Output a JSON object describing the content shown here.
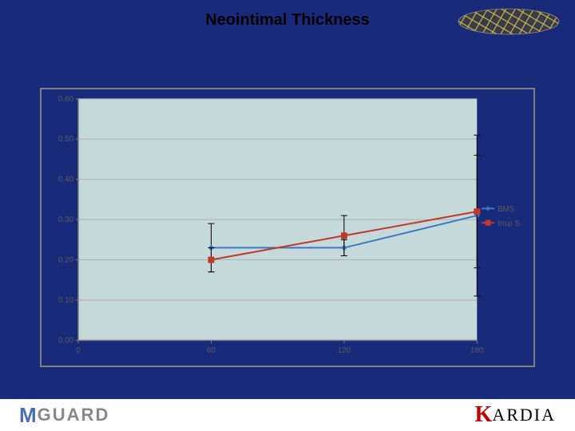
{
  "slide": {
    "background_color": "#1a2a7a",
    "title": "Neointimal Thickness",
    "title_color": "#000000",
    "title_fontsize": 20
  },
  "stent_image": {
    "mesh_color": "#d6c64a",
    "body_color": "#3a3a4a"
  },
  "chart": {
    "type": "line",
    "plot_background": "#c5d8da",
    "panel_border": "#7f7f7f",
    "gridline_color": "#b0b0b0",
    "axis_line_color": "#808080",
    "tick_label_color": "#595959",
    "tick_fontsize": 10,
    "xlim": [
      0,
      180
    ],
    "xticks": [
      0,
      60,
      120,
      180
    ],
    "xtick_labels": [
      "0",
      "60",
      "120",
      "180"
    ],
    "ylim": [
      0.0,
      0.6
    ],
    "yticks": [
      0.0,
      0.1,
      0.2,
      0.3,
      0.4,
      0.5,
      0.6
    ],
    "ytick_labels": [
      "0.00",
      "0.10",
      "0.20",
      "0.30",
      "0.40",
      "0.50",
      "0.60"
    ],
    "series": [
      {
        "name": "BMS",
        "label": "BMS",
        "color": "#3b78c4",
        "marker": "diamond",
        "marker_size": 6,
        "line_width": 2,
        "x": [
          60,
          120,
          180
        ],
        "y": [
          0.23,
          0.23,
          0.31
        ],
        "err": [
          0.06,
          0.02,
          0.2
        ]
      },
      {
        "name": "Insp S",
        "label": "Insp S",
        "color": "#c0392b",
        "marker": "square",
        "marker_size": 7,
        "line_width": 2,
        "x": [
          60,
          120,
          180
        ],
        "y": [
          0.2,
          0.26,
          0.32
        ],
        "err": [
          0.03,
          0.05,
          0.14
        ]
      }
    ],
    "legend": {
      "position": "right",
      "fontsize": 10,
      "text_color": "#595959",
      "border_color": "#a0a0a0"
    }
  },
  "footer": {
    "background_color": "#ffffff",
    "logo_left": {
      "m": "M",
      "guard": "GUARD",
      "m_color": "#4a6fb0",
      "guard_color": "#888888"
    },
    "logo_right": {
      "k": "K",
      "ardia": "ARDIA",
      "k_color": "#c00000",
      "ardia_color": "#000000"
    }
  }
}
